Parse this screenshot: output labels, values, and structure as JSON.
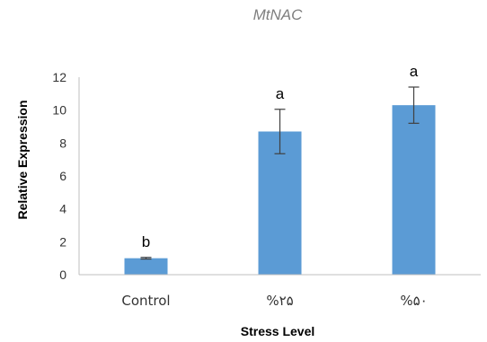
{
  "chart_data": {
    "type": "bar",
    "title": "MtNAC",
    "xlabel": "Stress Level",
    "ylabel": "Relative Expression",
    "categories": [
      "Control",
      "%۲۵",
      "%۵۰"
    ],
    "values": [
      1.0,
      8.7,
      10.3
    ],
    "error": [
      0.05,
      1.35,
      1.1
    ],
    "significance_labels": [
      "b",
      "a",
      "a"
    ],
    "ylim": [
      0,
      12
    ],
    "yticks": [
      "0",
      "2",
      "4",
      "6",
      "8",
      "10",
      "12"
    ],
    "grid": false,
    "bar_color": "#5b9bd5",
    "error_color": "#404040"
  }
}
